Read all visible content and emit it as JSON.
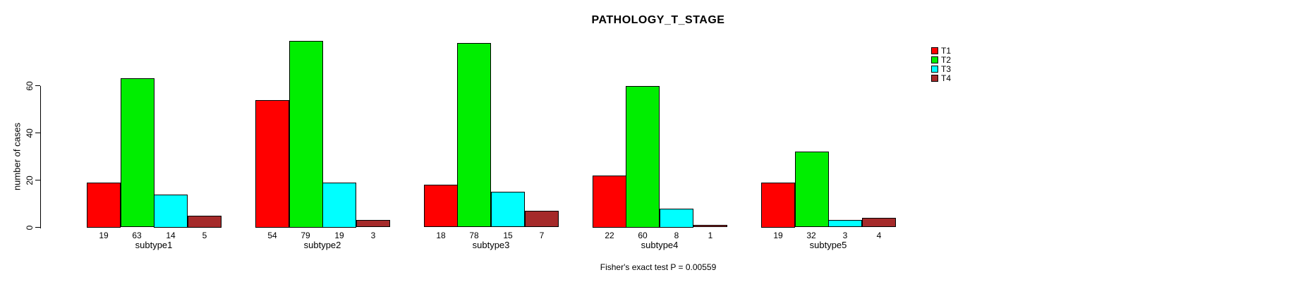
{
  "chart_data": {
    "type": "bar",
    "title": "PATHOLOGY_T_STAGE",
    "ylabel": "number of cases",
    "xlabel": "",
    "categories": [
      "subtype1",
      "subtype2",
      "subtype3",
      "subtype4",
      "subtype5"
    ],
    "series": [
      {
        "name": "T1",
        "color": "#FF0000",
        "values": [
          19,
          54,
          18,
          22,
          19
        ]
      },
      {
        "name": "T2",
        "color": "#00EE00",
        "values": [
          63,
          79,
          78,
          60,
          32
        ]
      },
      {
        "name": "T3",
        "color": "#00FFFF",
        "values": [
          14,
          19,
          15,
          8,
          3
        ]
      },
      {
        "name": "T4",
        "color": "#A52A2A",
        "values": [
          5,
          3,
          7,
          1,
          4
        ]
      }
    ],
    "yticks": [
      0,
      20,
      40,
      60
    ],
    "ylim": [
      0,
      83
    ],
    "grid": false,
    "bar_border_color": "#000000",
    "background_color": "#FFFFFF",
    "legend": {
      "position": "topright",
      "entries": [
        "T1",
        "T2",
        "T3",
        "T4"
      ]
    },
    "annotation": "Fisher's exact test P = 0.00559"
  }
}
